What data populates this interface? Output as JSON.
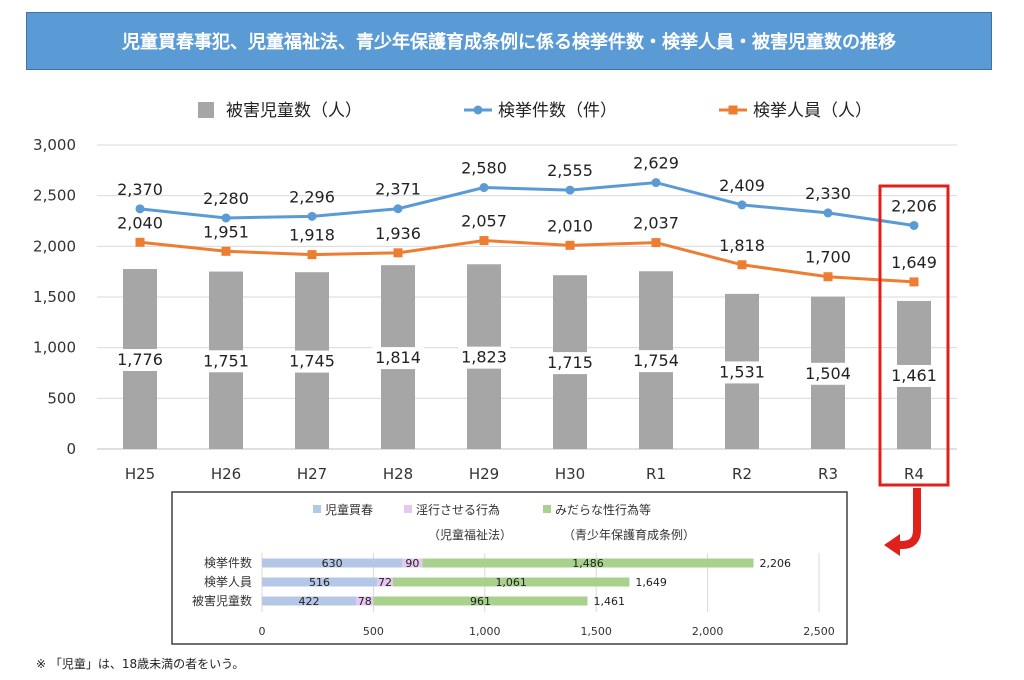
{
  "header": {
    "title": "児童買春事犯、児童福祉法、青少年保護育成条例に係る検挙件数・検挙人員・被害児童数の推移"
  },
  "note": "※ 「児童」は、18歳未満の者をいう。",
  "colors": {
    "title_bg": "#5b9bd5",
    "bar": "#a6a6a6",
    "cases_line": "#5b9bd5",
    "persons_line": "#ed7d31",
    "highlight": "#e0201b",
    "sub_kaishun": "#b4c7e7",
    "sub_ingyo": "#e6c8ef",
    "sub_midara": "#a9d18e"
  },
  "chart_data": [
    {
      "type": "bar+line",
      "categories": [
        "H25",
        "H26",
        "H27",
        "H28",
        "H29",
        "H30",
        "R1",
        "R2",
        "R3",
        "R4"
      ],
      "series": [
        {
          "name": "被害児童数（人）",
          "kind": "bar",
          "values": [
            1776,
            1751,
            1745,
            1814,
            1823,
            1715,
            1754,
            1531,
            1504,
            1461
          ],
          "labels": [
            "1,776",
            "1,751",
            "1,745",
            "1,814",
            "1,823",
            "1,715",
            "1,754",
            "1,531",
            "1,504",
            "1,461"
          ]
        },
        {
          "name": "検挙件数（件）",
          "kind": "line",
          "values": [
            2370,
            2280,
            2296,
            2371,
            2580,
            2555,
            2629,
            2409,
            2330,
            2206
          ],
          "labels": [
            "2,370",
            "2,280",
            "2,296",
            "2,371",
            "2,580",
            "2,555",
            "2,629",
            "2,409",
            "2,330",
            "2,206"
          ]
        },
        {
          "name": "検挙人員（人）",
          "kind": "line",
          "values": [
            2040,
            1951,
            1918,
            1936,
            2057,
            2010,
            2037,
            1818,
            1700,
            1649
          ],
          "labels": [
            "2,040",
            "1,951",
            "1,918",
            "1,936",
            "2,057",
            "2,010",
            "2,037",
            "1,818",
            "1,700",
            "1,649"
          ]
        }
      ],
      "ylim": [
        0,
        3000
      ],
      "yticks": [
        0,
        500,
        1000,
        1500,
        2000,
        2500,
        3000
      ],
      "ytick_labels": [
        "0",
        "500",
        "1,000",
        "1,500",
        "2,000",
        "2,500",
        "3,000"
      ],
      "grid": true,
      "legend": "top",
      "highlight_category": "R4"
    },
    {
      "type": "stacked-horizontal-bar",
      "categories": [
        "検挙件数",
        "検挙人員",
        "被害児童数"
      ],
      "series": [
        {
          "name": "児童買春",
          "values": [
            630,
            516,
            422
          ]
        },
        {
          "name": "淫行させる行為",
          "values": [
            90,
            72,
            78
          ]
        },
        {
          "name": "みだらな性行為等",
          "values": [
            1486,
            1061,
            961
          ]
        }
      ],
      "totals": [
        2206,
        1649,
        1461
      ],
      "total_labels": [
        "2,206",
        "1,649",
        "1,461"
      ],
      "segment_labels": [
        [
          "630",
          "90",
          "1,486"
        ],
        [
          "516",
          "72",
          "1,061"
        ],
        [
          "422",
          "78",
          "961"
        ]
      ],
      "legend_notes": [
        "（児童福祉法）",
        "（青少年保護育成条例）"
      ],
      "xlim": [
        0,
        2500
      ],
      "xticks": [
        0,
        500,
        1000,
        1500,
        2000,
        2500
      ],
      "xtick_labels": [
        "0",
        "500",
        "1,000",
        "1,500",
        "2,000",
        "2,500"
      ],
      "grid": true,
      "legend": "top"
    }
  ]
}
